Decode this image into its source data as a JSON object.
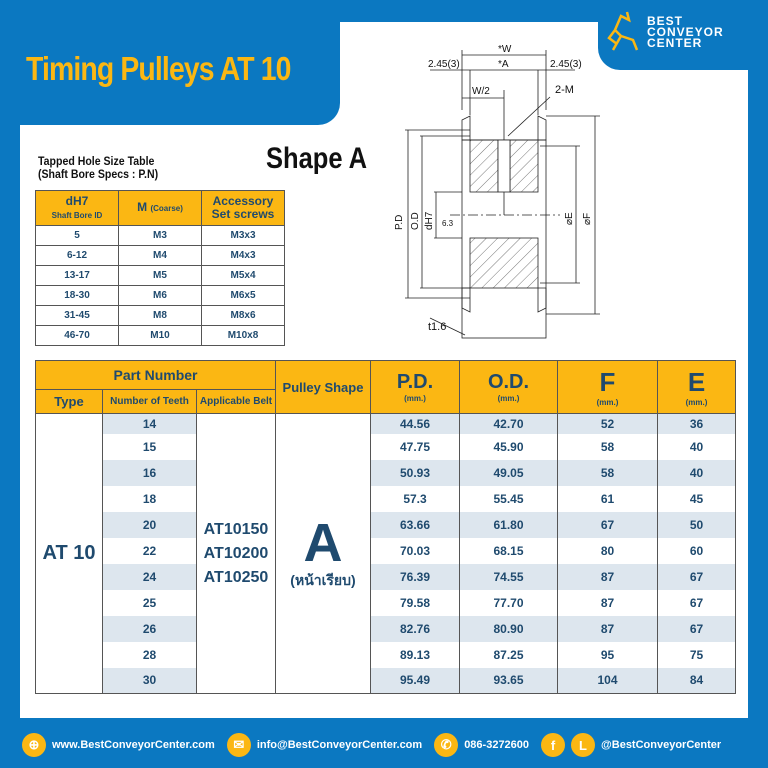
{
  "title": "Timing Pulleys AT 10",
  "logo": {
    "lines": [
      "BEST",
      "CONVEYOR",
      "CENTER"
    ]
  },
  "colors": {
    "brand_blue": "#0b78c1",
    "accent_yellow": "#fbb713",
    "text_navy": "#1f4a6e",
    "stripe": "#dde6ee"
  },
  "shape_title": "Shape A",
  "tapped_table": {
    "title": "Tapped Hole Size Table",
    "subtitle": "(Shaft Bore Specs : P.N)",
    "headers": {
      "c1": "dH7",
      "c1_sub": "Shaft Bore ID",
      "c2": "M",
      "c2_sub": "(Coarse)",
      "c3a": "Accessory",
      "c3b": "Set screws"
    },
    "rows": [
      [
        "5",
        "M3",
        "M3x3"
      ],
      [
        "6-12",
        "M4",
        "M4x3"
      ],
      [
        "13-17",
        "M5",
        "M5x4"
      ],
      [
        "18-30",
        "M6",
        "M6x5"
      ],
      [
        "31-45",
        "M8",
        "M8x6"
      ],
      [
        "46-70",
        "M10",
        "M10x8"
      ]
    ]
  },
  "diagram": {
    "labels": {
      "w": "*W",
      "a": "*A",
      "left_offset": "2.45(3)",
      "right_offset": "2.45(3)",
      "w2": "W/2",
      "m": "2-M",
      "pd": "P.D",
      "od": "O.D",
      "dh7": "dH7",
      "rough": "6.3",
      "e": "⌀E",
      "f": "⌀F",
      "t": "t1.6"
    }
  },
  "main_table": {
    "headers": {
      "part_number": "Part Number",
      "type": "Type",
      "teeth": "Number of Teeth",
      "belt": "Applicable Belt",
      "shape": "Pulley Shape",
      "pd": "P.D.",
      "od": "O.D.",
      "f": "F",
      "e": "E",
      "unit": "(mm.)"
    },
    "type": "AT 10",
    "belts": [
      "AT10150",
      "AT10200",
      "AT10250"
    ],
    "shape": "A",
    "shape_sub": "(หน้าเรียบ)",
    "rows": [
      {
        "teeth": "14",
        "pd": "44.56",
        "od": "42.70",
        "f": "52",
        "e": "36"
      },
      {
        "teeth": "15",
        "pd": "47.75",
        "od": "45.90",
        "f": "58",
        "e": "40"
      },
      {
        "teeth": "16",
        "pd": "50.93",
        "od": "49.05",
        "f": "58",
        "e": "40"
      },
      {
        "teeth": "18",
        "pd": "57.3",
        "od": "55.45",
        "f": "61",
        "e": "45"
      },
      {
        "teeth": "20",
        "pd": "63.66",
        "od": "61.80",
        "f": "67",
        "e": "50"
      },
      {
        "teeth": "22",
        "pd": "70.03",
        "od": "68.15",
        "f": "80",
        "e": "60"
      },
      {
        "teeth": "24",
        "pd": "76.39",
        "od": "74.55",
        "f": "87",
        "e": "67"
      },
      {
        "teeth": "25",
        "pd": "79.58",
        "od": "77.70",
        "f": "87",
        "e": "67"
      },
      {
        "teeth": "26",
        "pd": "82.76",
        "od": "80.90",
        "f": "87",
        "e": "67"
      },
      {
        "teeth": "28",
        "pd": "89.13",
        "od": "87.25",
        "f": "95",
        "e": "75"
      },
      {
        "teeth": "30",
        "pd": "95.49",
        "od": "93.65",
        "f": "104",
        "e": "84"
      }
    ]
  },
  "footer": {
    "website": "www.BestConveyorCenter.com",
    "email": "info@BestConveyorCenter.com",
    "phone": "086-3272600",
    "social": "@BestConveyorCenter",
    "icons": [
      "globe-icon",
      "mail-icon",
      "phone-icon",
      "facebook-icon",
      "line-icon"
    ]
  }
}
